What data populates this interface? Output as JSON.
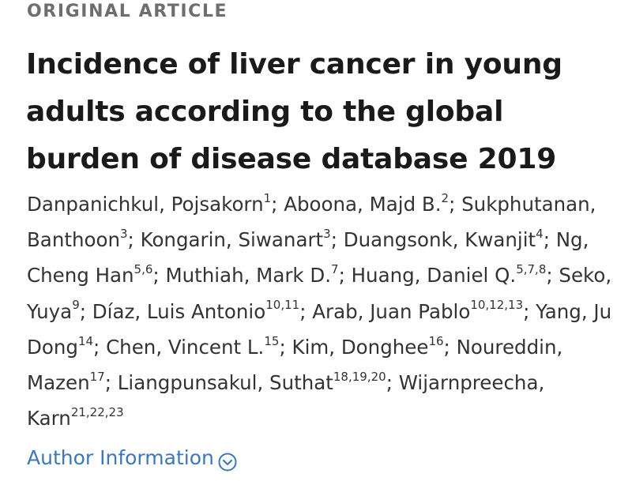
{
  "article_type": "ORIGINAL ARTICLE",
  "title": "Incidence of liver cancer in young adults according to the global burden of disease database 2019",
  "authors": [
    {
      "name": "Danpanichkul, Pojsakorn",
      "aff": "1"
    },
    {
      "name": "Aboona, Majd B.",
      "aff": "2"
    },
    {
      "name": "Sukphutanan, Banthoon",
      "aff": "3"
    },
    {
      "name": "Kongarin, Siwanart",
      "aff": "3"
    },
    {
      "name": "Duangsonk, Kwanjit",
      "aff": "4"
    },
    {
      "name": "Ng, Cheng Han",
      "aff": "5,6"
    },
    {
      "name": "Muthiah, Mark D.",
      "aff": "7"
    },
    {
      "name": "Huang, Daniel Q.",
      "aff": "5,7,8"
    },
    {
      "name": "Seko, Yuya",
      "aff": "9"
    },
    {
      "name": "Díaz, Luis Antonio",
      "aff": "10,11"
    },
    {
      "name": "Arab, Juan Pablo",
      "aff": "10,12,13"
    },
    {
      "name": "Yang, Ju Dong",
      "aff": "14"
    },
    {
      "name": "Chen, Vincent L.",
      "aff": "15"
    },
    {
      "name": "Kim, Donghee",
      "aff": "16"
    },
    {
      "name": "Noureddin, Mazen",
      "aff": "17"
    },
    {
      "name": "Liangpunsakul, Suthat",
      "aff": "18,19,20"
    },
    {
      "name": "Wijarnpreecha, Karn",
      "aff": "21,22,23"
    }
  ],
  "author_info_link": "Author Information",
  "accent_color": "#3a78c3",
  "icons": {
    "author_info_toggle": "chevron-down-circle-icon"
  }
}
